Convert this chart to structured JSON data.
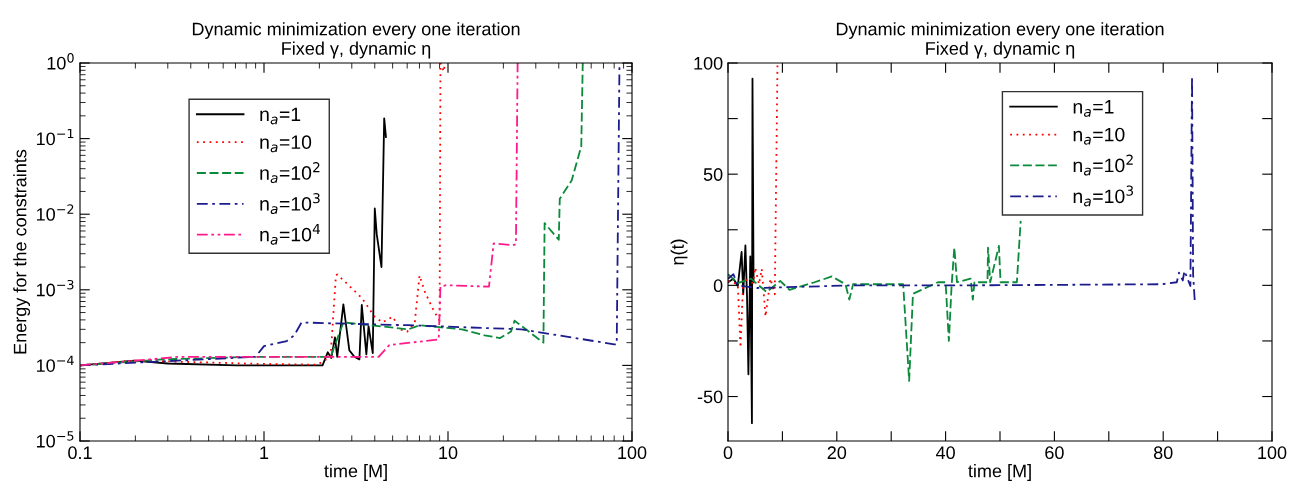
{
  "chart_data": [
    {
      "type": "line",
      "title": "Dynamic minimization every one iteration",
      "subtitle": "Fixed γ, dynamic η",
      "xlabel": "time [M]",
      "ylabel": "Energy for the constraints",
      "log": "xy",
      "grid": false,
      "legend": "top left",
      "marker": "none",
      "xlim": [
        0.1,
        100
      ],
      "xticks": [
        0.1,
        1,
        10,
        100
      ],
      "ylim": [
        1e-05,
        1
      ],
      "yticks": [
        {
          "value": 1e-05,
          "label": "10$^{−5}$"
        },
        {
          "value": 0.0001,
          "label": "10$^{−4}$"
        },
        {
          "value": 0.001,
          "label": "10$^{−3}$"
        },
        {
          "value": 0.01,
          "label": "10$^{−2}$"
        },
        {
          "value": 0.1,
          "label": "10$^{−1}$"
        },
        {
          "value": 1,
          "label": "10$^{0}$"
        }
      ],
      "series": [
        {
          "name": "n$_{a}$=1",
          "color": "#000000",
          "line_style": "solid",
          "x": [
            0.1,
            0.197,
            0.3,
            0.71,
            2.08,
            2.22,
            2.32,
            2.43,
            2.5,
            2.7,
            2.91,
            3.1,
            3.3,
            3.4,
            3.6,
            3.7,
            3.9,
            4.0,
            4.1,
            4.2,
            4.35,
            4.5,
            4.6
          ],
          "values": [
            0.0001,
            0.000116,
            0.000106,
            0.0001,
            0.0001,
            0.000149,
            0.000125,
            0.000235,
            0.00013,
            0.00064,
            0.000158,
            0.00013,
            0.00012,
            0.00063,
            0.00014,
            0.00033,
            0.000145,
            0.0119,
            0.0054,
            0.0036,
            0.002,
            0.185,
            0.105
          ]
        },
        {
          "name": "n$_{a}$=10",
          "color": "#ff0000",
          "line_style": "dotted",
          "x": [
            0.1,
            0.2,
            0.9,
            1.95,
            2.3,
            2.46,
            2.5,
            3.4,
            4.0,
            4.4,
            5.0,
            5.5,
            6.0,
            6.6,
            7.0,
            7.5,
            8.3,
            9.0,
            9.1,
            9.5,
            9.6
          ],
          "values": [
            0.0001,
            0.000116,
            0.000105,
            0.000102,
            0.00013,
            0.00155,
            0.0016,
            0.00078,
            0.00044,
            0.00037,
            0.00044,
            0.0003,
            0.00028,
            0.00037,
            0.00155,
            0.00093,
            0.00055,
            0.00039,
            1.0,
            0.77,
            1.0
          ]
        },
        {
          "name": "n$_{a}$=10$^{2}$",
          "color": "#0a8a3a",
          "line_style": "dashed",
          "x": [
            0.1,
            0.28,
            0.9,
            2.3,
            2.7,
            3.8,
            6.1,
            7.0,
            9.0,
            11.9,
            15.8,
            19.2,
            22,
            23,
            26.5,
            33,
            33.5,
            40,
            40.5,
            47,
            53,
            54
          ],
          "values": [
            0.0001,
            0.00012,
            0.00013,
            0.00013,
            0.00037,
            0.00034,
            0.0003,
            0.00034,
            0.00032,
            0.0003,
            0.00025,
            0.00023,
            0.00028,
            0.00039,
            0.0003,
            0.0002,
            0.0076,
            0.0046,
            0.016,
            0.028,
            0.079,
            1.0
          ]
        },
        {
          "name": "n$_{a}$=10$^{3}$",
          "color": "#1c1c8c",
          "line_style": "dashdot",
          "x": [
            0.1,
            0.9,
            1.0,
            1.33,
            1.46,
            1.6,
            2.35,
            6.1,
            25,
            80,
            82.6,
            85.5
          ],
          "values": [
            0.0001,
            0.00013,
            0.00018,
            0.00021,
            0.00025,
            0.00037,
            0.00036,
            0.00034,
            0.0003,
            0.00019,
            0.00019,
            1.0
          ]
        },
        {
          "name": "n$_{a}$=10$^{4}$",
          "color": "#ff1a8c",
          "line_style": "dashdotdot",
          "x": [
            0.1,
            0.35,
            0.9,
            2.3,
            4.2,
            4.8,
            8.9,
            9.1,
            9.8,
            16.7,
            17.7,
            22.5,
            23.4,
            23.9
          ],
          "values": [
            0.0001,
            0.00013,
            0.00013,
            0.00013,
            0.00013,
            0.000186,
            0.00022,
            0.0011,
            0.00115,
            0.0011,
            0.0041,
            0.0039,
            0.004,
            1.0
          ]
        }
      ]
    },
    {
      "type": "line",
      "title": "Dynamic minimization every one iteration",
      "subtitle": "Fixed γ, dynamic η",
      "xlabel": "time [M]",
      "ylabel": "η(t)",
      "grid": false,
      "legend": "top right",
      "marker": "none",
      "xlim": [
        0,
        100
      ],
      "xticks": [
        0,
        {
          "value": 10,
          "label": null
        },
        20,
        {
          "value": 30,
          "label": null
        },
        40,
        {
          "value": 50,
          "label": null
        },
        60,
        {
          "value": 70,
          "label": null
        },
        80,
        {
          "value": 90,
          "label": null
        },
        100
      ],
      "ylim": [
        -70,
        100
      ],
      "yticks": [
        -50,
        {
          "value": -25,
          "label": null
        },
        0,
        {
          "value": 25,
          "label": null
        },
        50,
        {
          "value": 75,
          "label": null
        },
        100
      ],
      "series": [
        {
          "name": "n$_{a}$=1",
          "color": "#000000",
          "line_style": "solid",
          "x": [
            0,
            1,
            1.8,
            2.5,
            2.8,
            3.2,
            3.5,
            3.75,
            4.1,
            4.4,
            4.5,
            4.7
          ],
          "values": [
            1.4,
            3,
            -0.3,
            15,
            -4,
            18,
            -5.5,
            -40,
            13,
            -62,
            93,
            1.4
          ]
        },
        {
          "name": "n$_{a}$=10",
          "color": "#ff0000",
          "line_style": "dotted",
          "x": [
            0,
            1.8,
            2.3,
            2.8,
            4.6,
            5,
            5.7,
            6.2,
            6.9,
            7.8,
            8.6,
            9.1
          ],
          "values": [
            2,
            0.5,
            -28,
            3,
            1,
            8,
            0.5,
            7.4,
            -14,
            3,
            -4,
            100
          ]
        },
        {
          "name": "n$_{a}$=10$^{2}$",
          "color": "#0a8a3a",
          "line_style": "dashed",
          "x": [
            0,
            1.8,
            4.2,
            7.1,
            9.6,
            11.3,
            15.9,
            19.1,
            21.6,
            22.3,
            23,
            32.2,
            33.3,
            34,
            38.6,
            40,
            40.6,
            41.1,
            41.6,
            42.1,
            44.6,
            45,
            45.3,
            47.7,
            47.8,
            48.2,
            49.8,
            50.1,
            53.1,
            53.8
          ],
          "values": [
            5,
            1,
            3,
            -3,
            2,
            -2,
            1.4,
            4,
            0.5,
            -6.4,
            0.5,
            0.5,
            -43,
            -3.8,
            1.4,
            1.4,
            -25,
            -0.3,
            17,
            1.4,
            3,
            -6.4,
            1.4,
            1.4,
            17,
            1.4,
            17.7,
            1.4,
            1.4,
            29
          ]
        },
        {
          "name": "n$_{a}$=10$^{3}$",
          "color": "#1c1c8c",
          "line_style": "dashdot",
          "x": [
            0,
            1,
            1.8,
            5.3,
            23,
            44.3,
            79.7,
            82.5,
            82.9,
            83.6,
            83.9,
            85,
            85.3,
            85.5,
            85.8
          ],
          "values": [
            3,
            5,
            0,
            -1.2,
            0,
            0,
            0.5,
            1.4,
            5.7,
            2.2,
            6.5,
            -0.3,
            94,
            4.8,
            -7
          ]
        }
      ]
    }
  ]
}
